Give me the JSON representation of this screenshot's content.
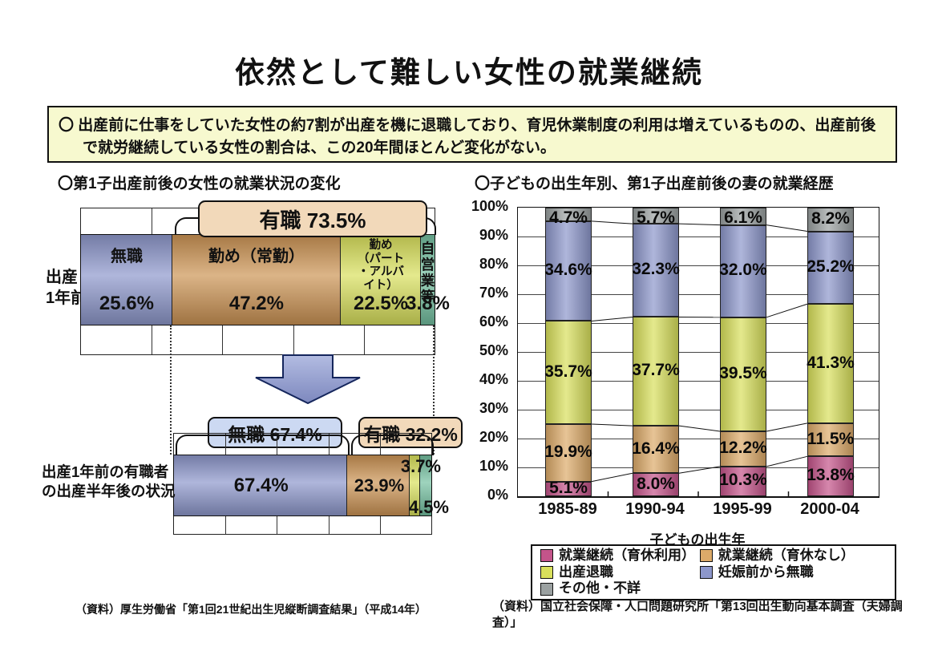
{
  "page": {
    "title": "依然として難しい女性の就業継続",
    "summary": "〇 出産前に仕事をしていた女性の約7割が出産を機に退職しており、育児休業制度の利用は増えているものの、出産前後で就労継続している女性の割合は、この20年間ほとんど変化がない。"
  },
  "colors": {
    "jobless_blue": "#8d97cb",
    "regular_tan": "#cc9454",
    "parttime_yellowgreen": "#d9e05c",
    "selfemployed_teal": "#74c0a0",
    "continued_leave_pink": "#c4548a",
    "continued_noleave_tan": "#dcaa69",
    "quit_yellowgreen": "#d9e05c",
    "jobless_before_blue": "#8d97cb",
    "other_gray": "#9ba1a1",
    "employed_pill_peach": "#f2d9ba",
    "jobless_pill_blue": "#ccd9f2",
    "summary_bg": "#f7f9cf"
  },
  "chart_data": [
    {
      "id": "left-before-after-first-birth",
      "type": "bar",
      "orientation": "horizontal-stacked",
      "title": "〇第1子出産前後の女性の就業状況の変化",
      "grid": true,
      "xlim": [
        0,
        100
      ],
      "rows": [
        {
          "label": "出産\n1年前",
          "bracket": {
            "label": "有職 73.5%",
            "start_value": 25.6,
            "end_value": 100
          },
          "segments": [
            {
              "name": "無職",
              "name_display": "無職",
              "value": 25.6,
              "label": "25.6%",
              "color": "#8d97cb"
            },
            {
              "name": "勤め（常勤）",
              "name_display": "勤め（常勤）",
              "value": 47.2,
              "label": "47.2%",
              "color": "#cc9454"
            },
            {
              "name": "勤め（パート・アルバイト）",
              "name_display": "勤め\n（パート\n・アルバイト）",
              "value": 22.5,
              "label": "22.5%",
              "color": "#d9e05c"
            },
            {
              "name": "自営業等",
              "name_display": "自営\n業等",
              "value": 3.8,
              "label": "3.8%",
              "color": "#74c0a0"
            }
          ]
        },
        {
          "label": "出産1年前の有職者\nの出産半年後の状況",
          "brackets": [
            {
              "label": "無職 67.4%",
              "start_value": 0,
              "end_value": 67.4
            },
            {
              "label": "有職 32.2%",
              "start_value": 67.4,
              "end_value": 99.5
            }
          ],
          "segments": [
            {
              "name": "無職",
              "value": 67.4,
              "label": "67.4%",
              "color": "#8d97cb",
              "label_pos": "center"
            },
            {
              "name": "勤め（常勤）",
              "value": 23.9,
              "label": "23.9%",
              "color": "#cc9454",
              "label_pos": "center"
            },
            {
              "name": "勤め（パート・アルバイト）",
              "value": 3.7,
              "label": "3.7%",
              "color": "#d9e05c",
              "label_pos": "top-right"
            },
            {
              "name": "自営業等",
              "value": 4.5,
              "label": "4.5%",
              "color": "#74c0a0",
              "label_pos": "bottom-right"
            }
          ]
        }
      ],
      "source": "（資料）厚生労働省「第1回21世紀出生児縦断調査結果」（平成14年）"
    },
    {
      "id": "right-employment-history-by-birth-year",
      "type": "stacked-bar",
      "title": "〇子どもの出生年別、第1子出産前後の妻の就業経歴",
      "categories": [
        "1985-89",
        "1990-94",
        "1995-99",
        "2000-04"
      ],
      "series": [
        {
          "name": "就業継続（育休利用）",
          "color": "#c4548a",
          "values": [
            5.1,
            8.0,
            10.3,
            13.8
          ],
          "labels": [
            "5.1%",
            "8.0%",
            "10.3%",
            "13.8%"
          ]
        },
        {
          "name": "就業継続（育休なし）",
          "color": "#dcaa69",
          "values": [
            19.9,
            16.4,
            12.2,
            11.5
          ],
          "labels": [
            "19.9%",
            "16.4%",
            "12.2%",
            "11.5%"
          ]
        },
        {
          "name": "出産退職",
          "color": "#d9e05c",
          "values": [
            35.7,
            37.7,
            39.5,
            41.3
          ],
          "labels": [
            "35.7%",
            "37.7%",
            "39.5%",
            "41.3%"
          ]
        },
        {
          "name": "妊娠前から無職",
          "color": "#8d97cb",
          "values": [
            34.6,
            32.3,
            32.0,
            25.2
          ],
          "labels": [
            "34.6%",
            "32.3%",
            "32.0%",
            "25.2%"
          ]
        },
        {
          "name": "その他・不詳",
          "color": "#9ba1a1",
          "values": [
            4.7,
            5.7,
            6.1,
            8.2
          ],
          "labels": [
            "4.7%",
            "5.7%",
            "6.1%",
            "8.2%"
          ]
        }
      ],
      "xlabel": "子どもの出生年",
      "ylim": [
        0,
        100
      ],
      "ytick_step": 10,
      "ytick_suffix": "%",
      "grid": true,
      "connector_lines": true,
      "legend_position": "bottom",
      "source": "（資料）国立社会保障・人口問題研究所「第13回出生動向基本調査（夫婦調査）」"
    }
  ]
}
